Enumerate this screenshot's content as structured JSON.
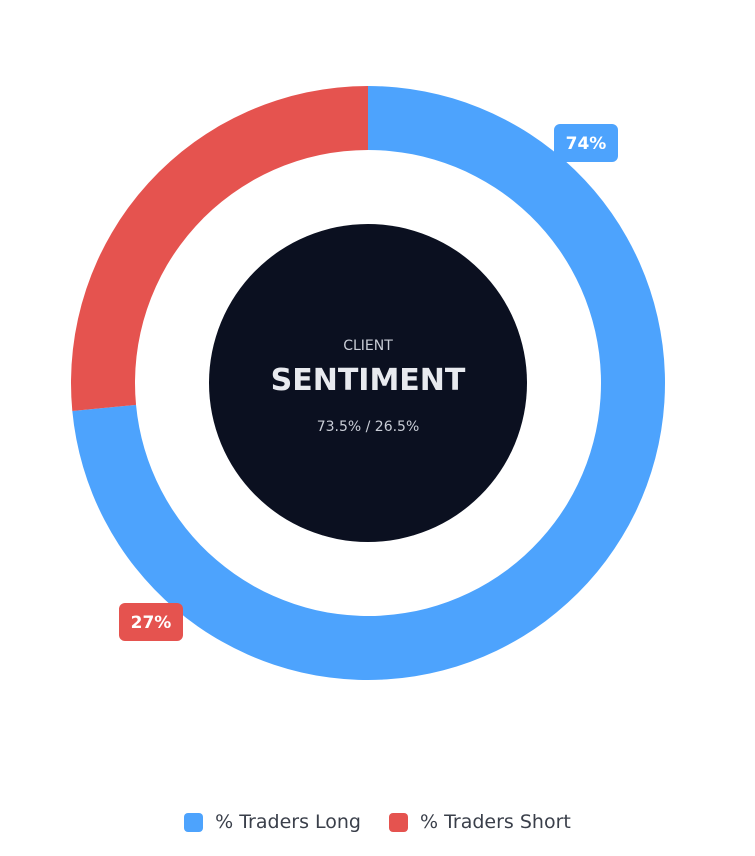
{
  "chart_data": {
    "type": "pie",
    "categories": [
      "% Traders Long",
      "% Traders Short"
    ],
    "values": [
      73.5,
      26.5
    ],
    "slice_labels": [
      "74%",
      "27%"
    ],
    "colors": [
      "#4da3fd",
      "#e5534f"
    ],
    "legend_position": "bottom",
    "center": {
      "label": "CLIENT",
      "title": "SENTIMENT",
      "ratio": "73.5% / 26.5%",
      "background": "#0b1020"
    }
  }
}
